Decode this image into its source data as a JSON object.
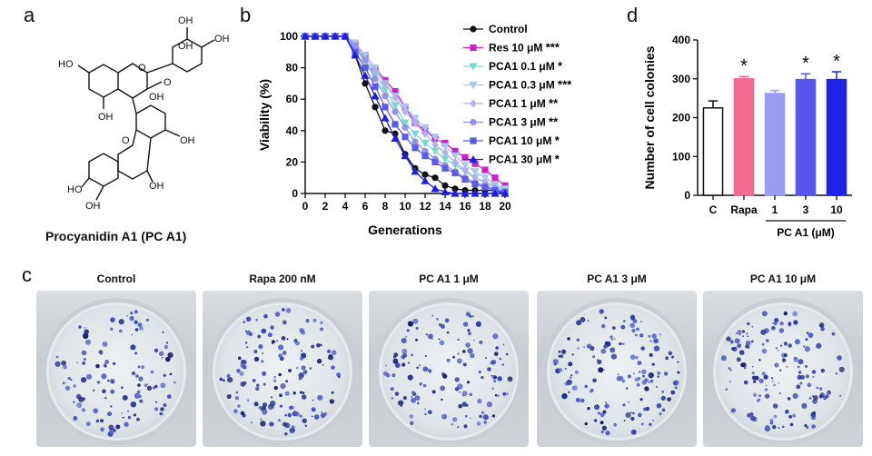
{
  "panels": {
    "a": "a",
    "b": "b",
    "c": "c",
    "d": "d"
  },
  "structure": {
    "caption": "Procyanidin A1 (PC A1)",
    "atoms": [
      "OH",
      "OH",
      "HO",
      "O",
      "O",
      "OH",
      "OH",
      "OH",
      "O",
      "OH",
      "HO",
      "OH",
      "OH"
    ]
  },
  "chart_data": [
    {
      "type": "line",
      "panel": "b",
      "xlabel": "Generations",
      "ylabel": "Viability (%)",
      "xlim": [
        0,
        20
      ],
      "ylim": [
        0,
        100
      ],
      "xticks": [
        0,
        2,
        4,
        6,
        8,
        10,
        12,
        14,
        16,
        18,
        20
      ],
      "yticks": [
        0,
        20,
        40,
        60,
        80,
        100
      ],
      "legend_position": "right",
      "series": [
        {
          "name": "Control",
          "sig": "",
          "color": "#111111",
          "marker": "circle-filled",
          "x": [
            0,
            1,
            2,
            3,
            4,
            5,
            6,
            7,
            8,
            9,
            10,
            11,
            12,
            13,
            14,
            15,
            16,
            17,
            18,
            19,
            20
          ],
          "y": [
            100,
            100,
            100,
            100,
            100,
            88,
            70,
            55,
            40,
            38,
            25,
            16,
            12,
            10,
            5,
            3,
            2,
            2,
            2,
            2,
            0
          ]
        },
        {
          "name": "Res 10 μM",
          "sig": "***",
          "color": "#cc22cc",
          "marker": "square-filled",
          "x": [
            0,
            1,
            2,
            3,
            4,
            5,
            6,
            7,
            8,
            9,
            10,
            11,
            12,
            13,
            14,
            15,
            16,
            17,
            18,
            19,
            20
          ],
          "y": [
            100,
            100,
            100,
            100,
            100,
            95,
            88,
            80,
            72,
            65,
            55,
            45,
            40,
            35,
            32,
            27,
            23,
            19,
            15,
            10,
            5
          ]
        },
        {
          "name": "PCA1 0.1 μM",
          "sig": "*",
          "color": "#77d9d0",
          "marker": "triangle-down",
          "x": [
            0,
            1,
            2,
            3,
            4,
            5,
            6,
            7,
            8,
            9,
            10,
            11,
            12,
            13,
            14,
            15,
            16,
            17,
            18,
            19,
            20
          ],
          "y": [
            100,
            100,
            100,
            100,
            100,
            92,
            84,
            76,
            66,
            56,
            45,
            38,
            32,
            27,
            22,
            18,
            14,
            10,
            7,
            5,
            2
          ]
        },
        {
          "name": "PCA1 0.3 μM",
          "sig": "***",
          "color": "#a8c7ef",
          "marker": "triangle-down",
          "x": [
            0,
            1,
            2,
            3,
            4,
            5,
            6,
            7,
            8,
            9,
            10,
            11,
            12,
            13,
            14,
            15,
            16,
            17,
            18,
            19,
            20
          ],
          "y": [
            100,
            100,
            100,
            100,
            100,
            96,
            88,
            80,
            70,
            62,
            55,
            48,
            42,
            36,
            30,
            24,
            18,
            14,
            10,
            6,
            3
          ]
        },
        {
          "name": "PCA1 1 μM",
          "sig": "**",
          "color": "#b0b0ec",
          "marker": "diamond",
          "x": [
            0,
            1,
            2,
            3,
            4,
            5,
            6,
            7,
            8,
            9,
            10,
            11,
            12,
            13,
            14,
            15,
            16,
            17,
            18,
            19,
            20
          ],
          "y": [
            100,
            100,
            100,
            100,
            100,
            92,
            86,
            78,
            70,
            61,
            52,
            45,
            38,
            31,
            26,
            20,
            15,
            10,
            7,
            4,
            1
          ]
        },
        {
          "name": "PCA1 3 μM",
          "sig": "**",
          "color": "#9393e6",
          "marker": "circle-filled",
          "x": [
            0,
            1,
            2,
            3,
            4,
            5,
            6,
            7,
            8,
            9,
            10,
            11,
            12,
            13,
            14,
            15,
            16,
            17,
            18,
            19,
            20
          ],
          "y": [
            100,
            100,
            100,
            100,
            100,
            94,
            85,
            73,
            62,
            52,
            42,
            33,
            27,
            22,
            18,
            14,
            10,
            7,
            5,
            3,
            1
          ]
        },
        {
          "name": "PCA1 10 μM",
          "sig": "*",
          "color": "#5b5bea",
          "marker": "square-filled",
          "x": [
            0,
            1,
            2,
            3,
            4,
            5,
            6,
            7,
            8,
            9,
            10,
            11,
            12,
            13,
            14,
            15,
            16,
            17,
            18,
            19,
            20
          ],
          "y": [
            100,
            100,
            100,
            100,
            100,
            90,
            80,
            68,
            55,
            44,
            36,
            29,
            24,
            20,
            16,
            13,
            9,
            6,
            4,
            2,
            1
          ]
        },
        {
          "name": "PCA1 30 μM",
          "sig": "*",
          "color": "#1e1ee0",
          "marker": "triangle-up",
          "x": [
            0,
            1,
            2,
            3,
            4,
            5,
            6,
            7,
            8,
            9,
            10,
            11,
            12,
            13,
            14,
            15,
            16,
            17,
            18,
            19,
            20
          ],
          "y": [
            100,
            100,
            100,
            100,
            100,
            88,
            75,
            62,
            48,
            35,
            24,
            14,
            8,
            3,
            1,
            0,
            0,
            0,
            0,
            0,
            0
          ]
        }
      ]
    },
    {
      "type": "bar",
      "panel": "d",
      "ylabel": "Number of cell colonies",
      "xlabel": "PC A1 (μM)",
      "ylim": [
        0,
        400
      ],
      "yticks": [
        0,
        100,
        200,
        300,
        400
      ],
      "categories": [
        "C",
        "Rapa",
        "1",
        "3",
        "10"
      ],
      "values": [
        225,
        300,
        262,
        298,
        298
      ],
      "errors": [
        18,
        6,
        8,
        15,
        20
      ],
      "significance": [
        "",
        "*",
        "",
        "*",
        "*"
      ],
      "colors": [
        "#ffffff",
        "#f06a92",
        "#9a9cf2",
        "#5656ee",
        "#1e22e6"
      ]
    }
  ],
  "plates": [
    {
      "label": "Control",
      "density": 0.8
    },
    {
      "label": "Rapa 200 nM",
      "density": 1.0
    },
    {
      "label": "PC A1 1 μM",
      "density": 0.9
    },
    {
      "label": "PC A1 3 μM",
      "density": 1.0
    },
    {
      "label": "PC A1 10 μM",
      "density": 1.0
    }
  ]
}
